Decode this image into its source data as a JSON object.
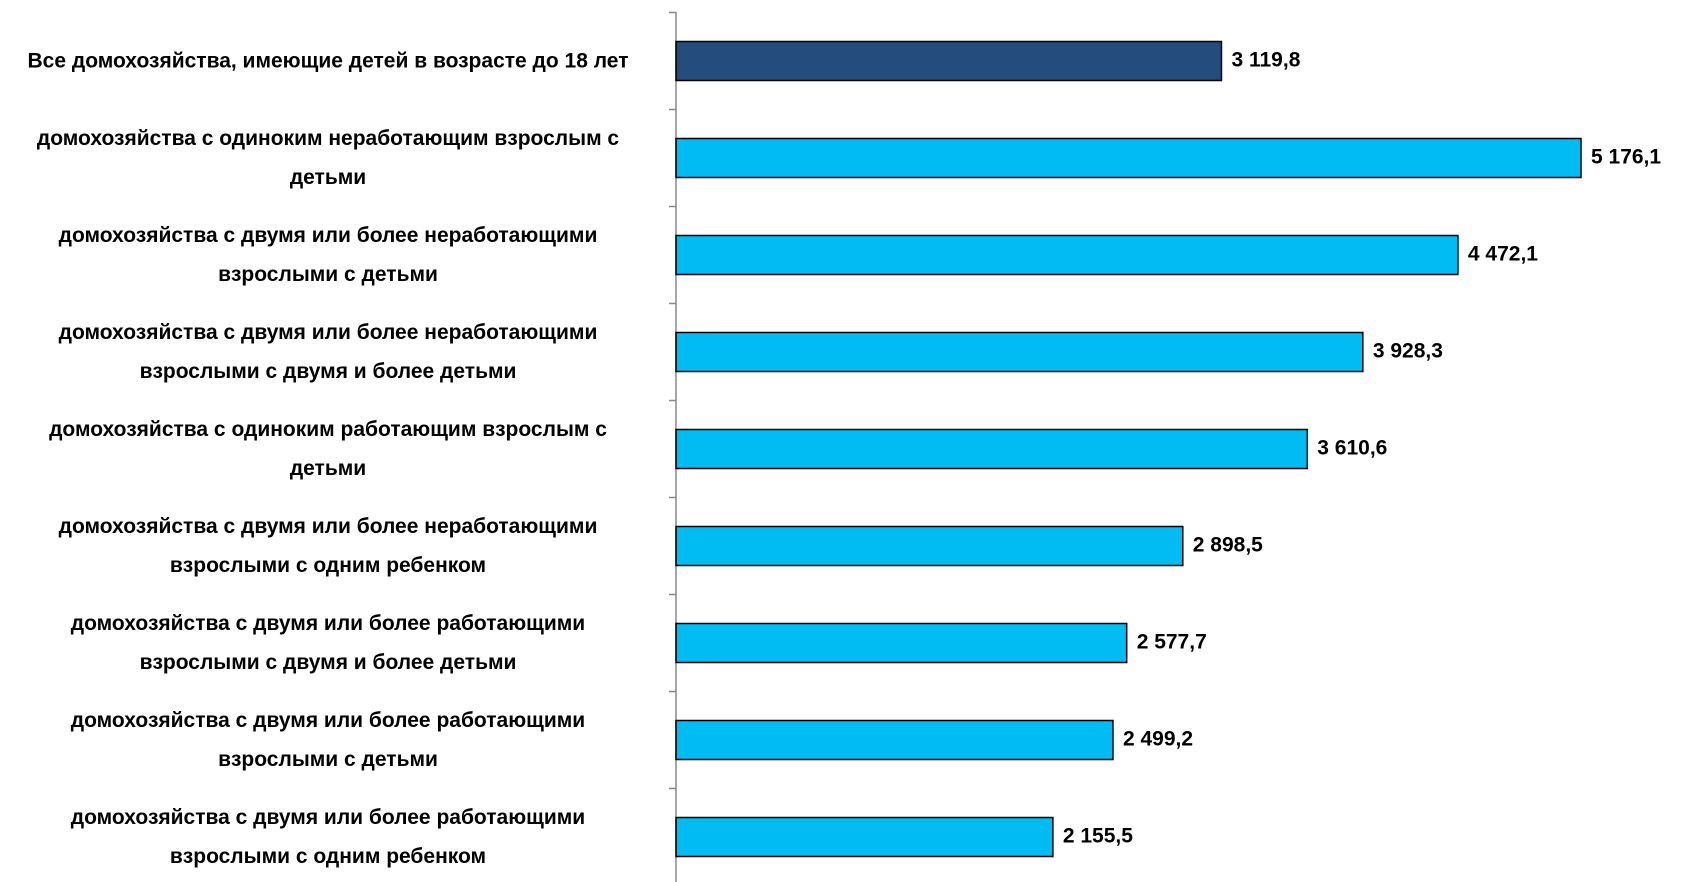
{
  "chart_data": {
    "type": "bar",
    "orientation": "horizontal",
    "categories": [
      "Все домохозяйства,  имеющие детей в возрасте до 18 лет",
      "домохозяйства  с одиноким  неработающим взрослым  с детьми",
      "домохозяйства  с двумя  или более неработающими взрослыми  с детьми",
      "домохозяйства  с двумя  или более неработающими взрослыми  с двумя  и более детьми",
      "домохозяйства  с одиноким  работающим  взрослым с детьми",
      "домохозяйства  с двумя  или более неработающими взрослыми  с одним ребенком",
      "домохозяйства  с двумя  или более работающими взрослыми  с двумя  и более детьми",
      "домохозяйства  с двумя  или более работающими взрослыми  с детьми",
      "домохозяйства  с двумя  или более работающими взрослыми  с одним ребенком"
    ],
    "values": [
      3119.8,
      5176.1,
      4472.1,
      3928.3,
      3610.6,
      2898.5,
      2577.7,
      2499.2,
      2155.5
    ],
    "value_labels": [
      "3 119,8",
      "5 176,1",
      "4 472,1",
      "3 928,3",
      "3 610,6",
      "2 898,5",
      "2 577,7",
      "2 499,2",
      "2 155,5"
    ],
    "colors": [
      "#244c7c",
      "#00bcf2",
      "#00bcf2",
      "#00bcf2",
      "#00bcf2",
      "#00bcf2",
      "#00bcf2",
      "#00bcf2",
      "#00bcf2"
    ]
  }
}
